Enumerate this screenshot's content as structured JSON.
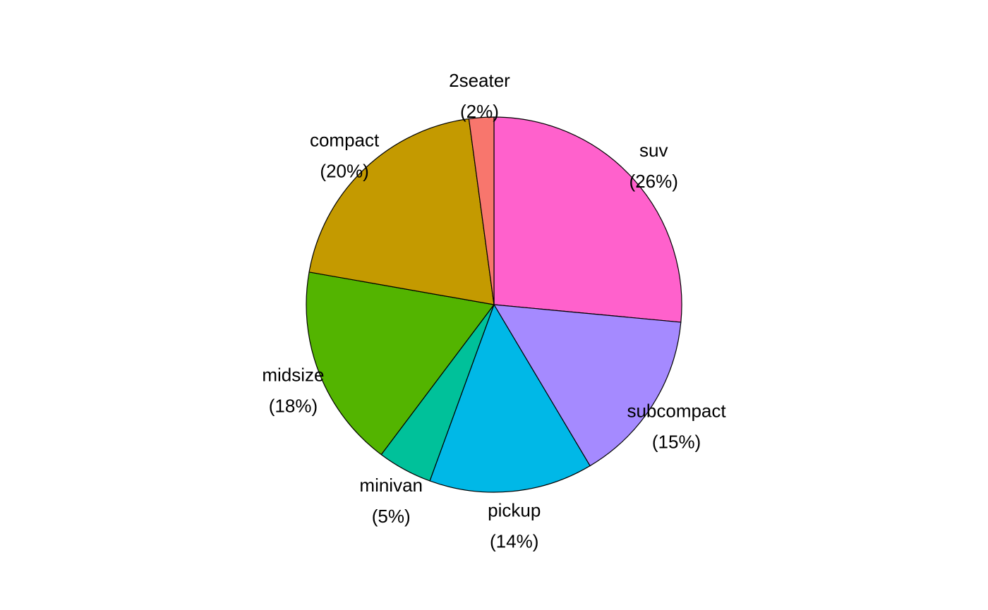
{
  "chart_data": {
    "type": "pie",
    "title": "",
    "start": "12 o'clock",
    "direction": "clockwise",
    "slices": [
      {
        "label": "suv",
        "pct_label": "(26%)",
        "value": 62,
        "color": "#FF61CC"
      },
      {
        "label": "subcompact",
        "pct_label": "(15%)",
        "value": 35,
        "color": "#A58AFF"
      },
      {
        "label": "pickup",
        "pct_label": "(14%)",
        "value": 33,
        "color": "#00B8E7"
      },
      {
        "label": "minivan",
        "pct_label": "(5%)",
        "value": 11,
        "color": "#00C19A"
      },
      {
        "label": "midsize",
        "pct_label": "(18%)",
        "value": 41,
        "color": "#53B400"
      },
      {
        "label": "compact",
        "pct_label": "(20%)",
        "value": 47,
        "color": "#C49A00"
      },
      {
        "label": "2seater",
        "pct_label": "(2%)",
        "value": 5,
        "color": "#F8766D"
      }
    ]
  }
}
